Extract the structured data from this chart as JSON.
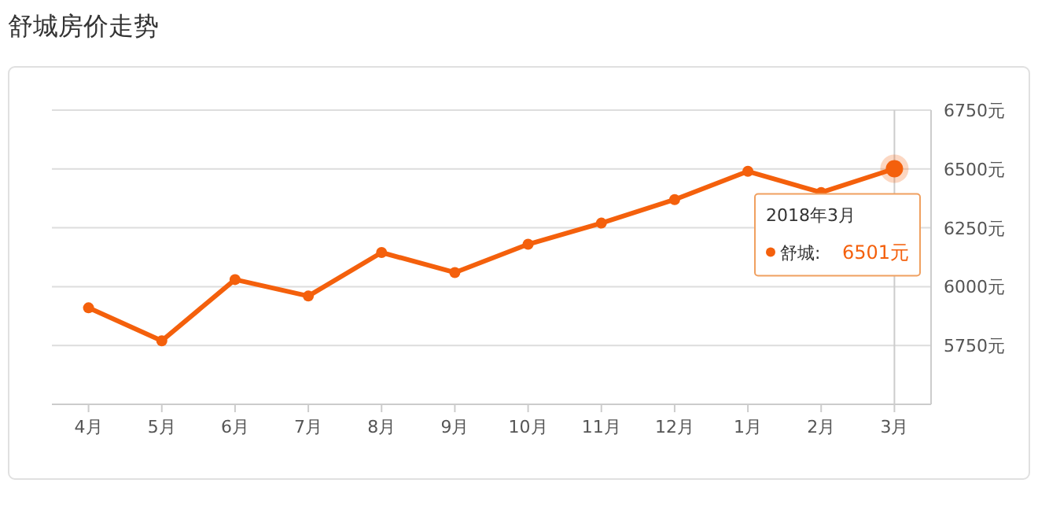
{
  "chart_data": {
    "type": "line",
    "title": "舒城房价走势",
    "categories": [
      "4月",
      "5月",
      "6月",
      "7月",
      "8月",
      "9月",
      "10月",
      "11月",
      "12月",
      "1月",
      "2月",
      "3月"
    ],
    "series": [
      {
        "name": "舒城:",
        "color": "#f4600c",
        "values": [
          5910,
          5770,
          6030,
          5960,
          6145,
          6060,
          6180,
          6270,
          6370,
          6490,
          6400,
          6501
        ]
      }
    ],
    "ylim": [
      5500,
      6750
    ],
    "yticks": [
      {
        "value": 5750,
        "label": "5750元"
      },
      {
        "value": 6000,
        "label": "6000元"
      },
      {
        "value": 6250,
        "label": "6250元"
      },
      {
        "value": 6500,
        "label": "6500元"
      },
      {
        "value": 6750,
        "label": "6750元"
      }
    ],
    "grid": "y",
    "marker": "circle",
    "line_style": "solid",
    "ref_lines": [
      {
        "axis": "x",
        "value": "3月",
        "color": "#cccccc"
      }
    ],
    "annotations": [
      "2018年3月",
      "6501元"
    ]
  }
}
